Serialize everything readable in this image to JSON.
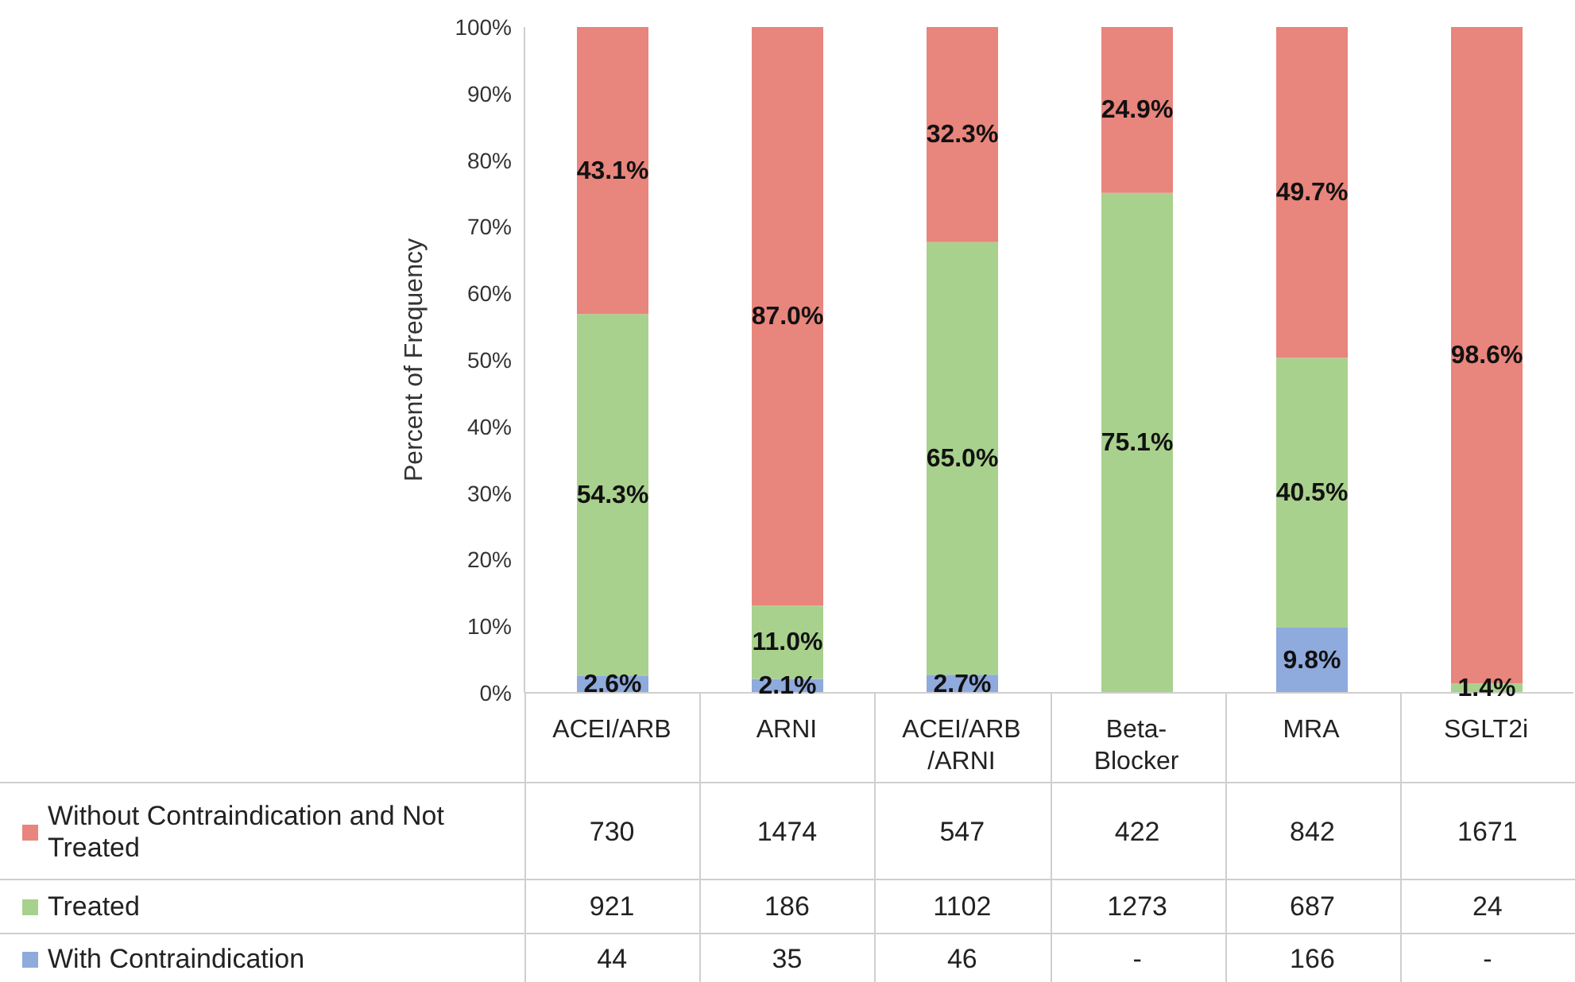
{
  "chart_data": {
    "type": "bar",
    "stacked": true,
    "ylabel": "Percent of Frequency",
    "legend": "bottom",
    "categories": [
      "ACEI/ARB",
      "ARNI",
      "ACEI/ARB/ARNI",
      "Beta-Blocker",
      "MRA",
      "SGLT2i"
    ],
    "series": [
      {
        "name": "With Contraindication",
        "color": "#8faadc",
        "values": [
          2.6,
          2.1,
          2.7,
          null,
          9.8,
          null
        ],
        "value_labels": [
          "2.6%",
          "2.1%",
          "2.7%",
          null,
          "9.8%",
          null
        ]
      },
      {
        "name": "Treated",
        "color": "#a9d18e",
        "values": [
          54.3,
          11.0,
          65.0,
          75.1,
          40.5,
          1.4
        ],
        "value_labels": [
          "54.3%",
          "11.0%",
          "65.0%",
          "75.1%",
          "40.5%",
          "1.4%"
        ]
      },
      {
        "name": "Without Contraindication and Not Treated",
        "color": "#e8857c",
        "values": [
          43.1,
          87.0,
          32.3,
          24.9,
          49.7,
          98.6
        ],
        "value_labels": [
          "43.1%",
          "87.0%",
          "32.3%",
          "24.9%",
          "49.7%",
          "98.6%"
        ]
      }
    ],
    "ylim": [
      0,
      100
    ],
    "yticks": [
      {
        "value": 0,
        "label": "0%"
      },
      {
        "value": 10,
        "label": "10%"
      },
      {
        "value": 20,
        "label": "20%"
      },
      {
        "value": 30,
        "label": "30%"
      },
      {
        "value": 40,
        "label": "40%"
      },
      {
        "value": 50,
        "label": "50%"
      },
      {
        "value": 60,
        "label": "60%"
      },
      {
        "value": 70,
        "label": "70%"
      },
      {
        "value": 80,
        "label": "80%"
      },
      {
        "value": 90,
        "label": "90%"
      },
      {
        "value": 100,
        "label": "100%"
      }
    ],
    "annotations": [
      "44",
      "35",
      "46",
      "-",
      "166",
      "-",
      "921",
      "186",
      "1102",
      "1273",
      "687",
      "24",
      "730",
      "1474",
      "547",
      "422",
      "842",
      "1671"
    ]
  }
}
